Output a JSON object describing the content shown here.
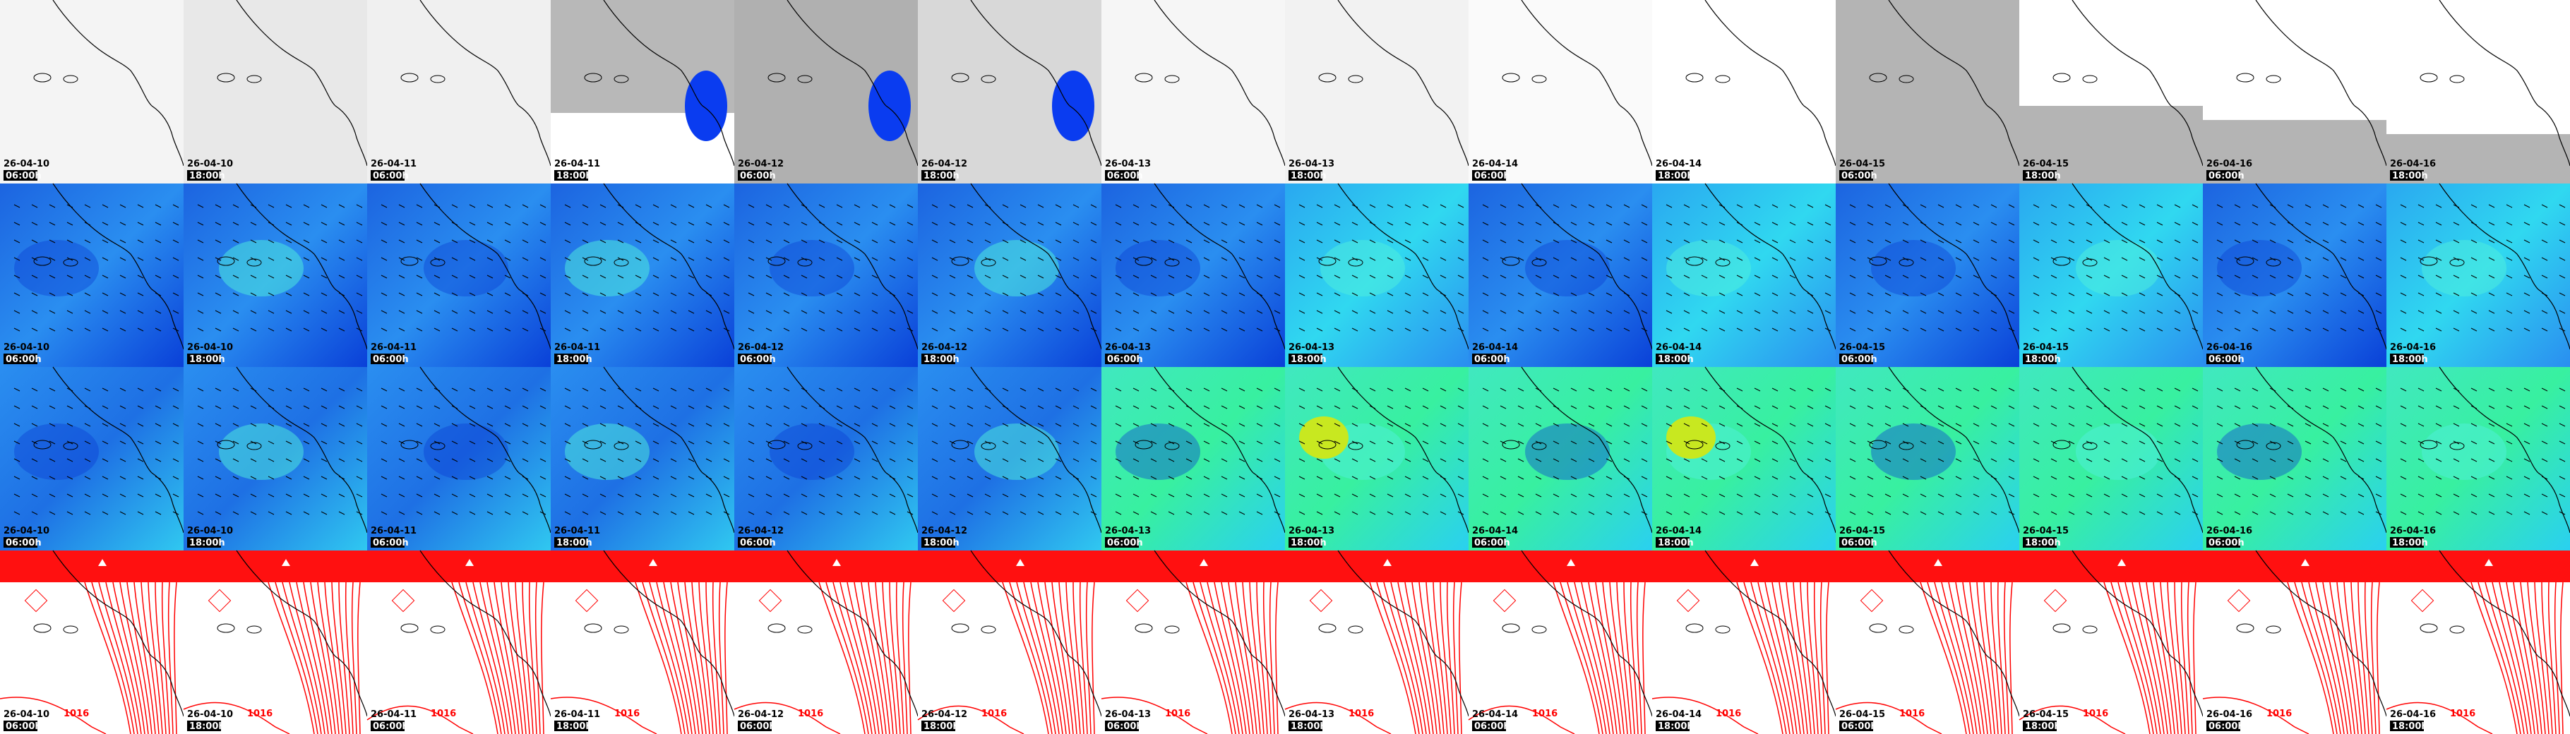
{
  "columns": [
    {
      "date": "26-04-10",
      "time": "06:00h"
    },
    {
      "date": "26-04-10",
      "time": "18:00h"
    },
    {
      "date": "26-04-11",
      "time": "06:00h"
    },
    {
      "date": "26-04-11",
      "time": "18:00h"
    },
    {
      "date": "26-04-12",
      "time": "06:00h"
    },
    {
      "date": "26-04-12",
      "time": "18:00h"
    },
    {
      "date": "26-04-13",
      "time": "06:00h"
    },
    {
      "date": "26-04-13",
      "time": "18:00h"
    },
    {
      "date": "26-04-14",
      "time": "06:00h"
    },
    {
      "date": "26-04-14",
      "time": "18:00h"
    },
    {
      "date": "26-04-15",
      "time": "06:00h"
    },
    {
      "date": "26-04-15",
      "time": "18:00h"
    },
    {
      "date": "26-04-16",
      "time": "06:00h"
    },
    {
      "date": "26-04-16",
      "time": "18:00h"
    }
  ],
  "isobar_label": "1016"
}
